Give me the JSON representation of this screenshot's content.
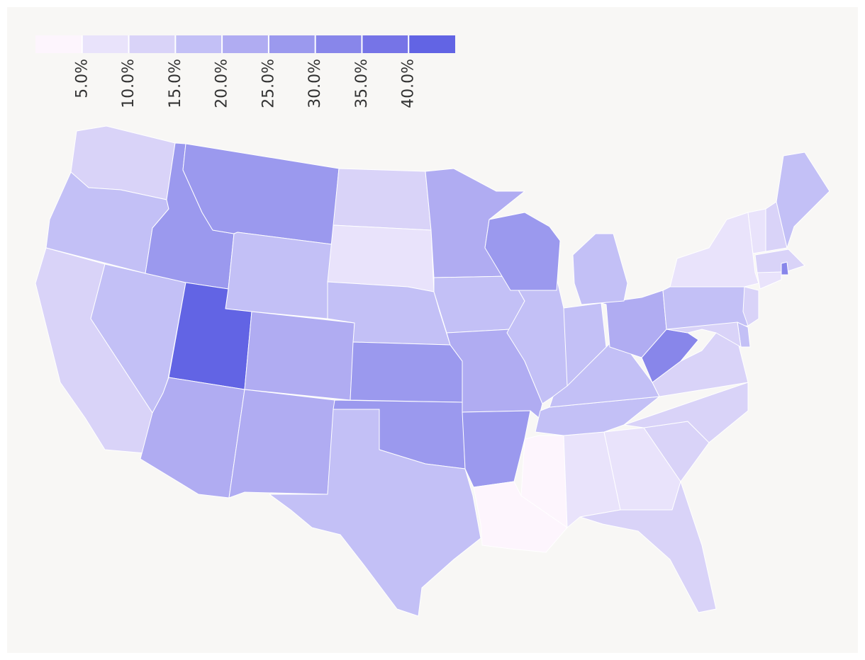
{
  "chart_data": {
    "type": "choropleth",
    "legend": {
      "range": [
        0,
        45
      ],
      "ticks": [
        {
          "value": 5,
          "label": "5.0%"
        },
        {
          "value": 10,
          "label": "10.0%"
        },
        {
          "value": 15,
          "label": "15.0%"
        },
        {
          "value": 20,
          "label": "20.0%"
        },
        {
          "value": 25,
          "label": "25.0%"
        },
        {
          "value": 30,
          "label": "30.0%"
        },
        {
          "value": 35,
          "label": "35.0%"
        },
        {
          "value": 40,
          "label": "40.0%"
        }
      ],
      "colors": [
        "#fdf5fd",
        "#e9e3fb",
        "#d9d3f8",
        "#c3c0f6",
        "#b0acf2",
        "#9b99ee",
        "#8886ea",
        "#7674e7",
        "#6264e4"
      ]
    },
    "values": [
      12,
      17,
      12,
      17,
      27,
      27,
      17,
      42,
      22,
      22,
      22,
      12,
      7,
      17,
      27,
      27,
      17,
      22,
      17,
      22,
      27,
      2,
      2,
      7,
      7,
      12,
      12,
      12,
      17,
      17,
      12,
      32,
      22,
      17,
      17,
      17,
      27,
      17,
      7,
      7,
      12,
      17,
      12,
      32,
      7,
      12,
      17,
      12
    ]
  }
}
